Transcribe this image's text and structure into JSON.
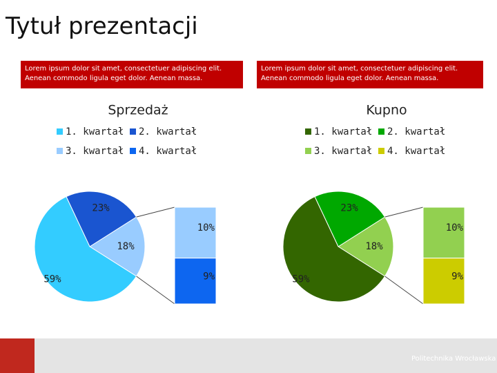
{
  "slide": {
    "title": "Tytuł prezentacji",
    "boxes": [
      "Lorem ipsum dolor sit amet, consectetuer adipiscing elit. Aenean commodo ligula eget dolor. Aenean massa.",
      "Lorem ipsum dolor sit amet, consectetuer adipiscing elit. Aenean commodo ligula eget dolor. Aenean massa."
    ],
    "footer": "Politechnika Wrocławska"
  },
  "chart_data": [
    {
      "type": "pie",
      "title": "Sprzedaż",
      "categories": [
        "1. kwartał",
        "2. kwartał",
        "3. kwartał",
        "4. kwartał"
      ],
      "values": [
        59,
        23,
        10,
        9
      ],
      "value_labels": [
        "59%",
        "23%",
        "10%",
        "9%"
      ],
      "colors": [
        "#33ccff",
        "#1a55d0",
        "#99ccff",
        "#0d66f0"
      ],
      "secondary_count": 2,
      "combined_value": 18,
      "combined_label": "18%",
      "combined_color": "#99ccff"
    },
    {
      "type": "pie",
      "title": "Kupno",
      "categories": [
        "1. kwartał",
        "2. kwartał",
        "3. kwartał",
        "4. kwartał"
      ],
      "values": [
        59,
        23,
        10,
        9
      ],
      "value_labels": [
        "59%",
        "23%",
        "10%",
        "9%"
      ],
      "colors": [
        "#336600",
        "#00a800",
        "#92d050",
        "#cccc00"
      ],
      "secondary_count": 2,
      "combined_value": 18,
      "combined_label": "18%",
      "combined_color": "#92d050"
    }
  ]
}
